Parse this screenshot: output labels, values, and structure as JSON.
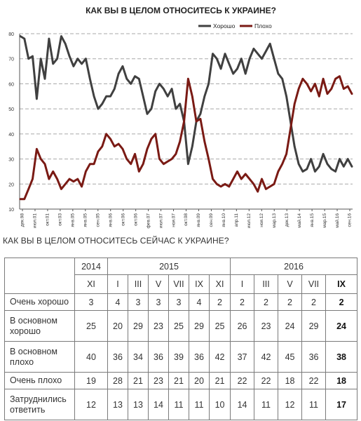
{
  "chart_data": {
    "type": "line",
    "title": "КАК ВЫ В ЦЕЛОМ ОТНОСИТЕСЬ К УКРАИНЕ?",
    "ylim": [
      10,
      80
    ],
    "yticks": [
      "10",
      "20",
      "30",
      "40",
      "50",
      "60",
      "70",
      "80"
    ],
    "grid": true,
    "legend_position": "top-right",
    "colors": {
      "good": "#404040",
      "bad": "#7a1a14",
      "grid": "#a8a8a8"
    },
    "x_tick_labels": [
      "дек.98",
      "июл.01",
      "окт.01",
      "окт.03",
      "янв.05",
      "янв.05",
      "сен.05",
      "янв.06",
      "окт.06",
      "окт.06",
      "фев.07",
      "июл.07",
      "ноя.07",
      "окт.08",
      "янв.09",
      "сен.09",
      "янв.10",
      "апр.11",
      "июл.12",
      "ноя.12",
      "мар.13",
      "дек.13",
      "май.14",
      "янв.15",
      "мар.15",
      "май.16",
      "сен.16"
    ],
    "series": [
      {
        "name": "Хорошо",
        "color": "#404040",
        "values": [
          79,
          78,
          70,
          71,
          54,
          70,
          62,
          78,
          68,
          70,
          79,
          76,
          71,
          67,
          70,
          68,
          70,
          62,
          55,
          50,
          52,
          55,
          55,
          58,
          64,
          67,
          62,
          60,
          63,
          62,
          55,
          48,
          50,
          57,
          60,
          58,
          55,
          58,
          50,
          52,
          45,
          28,
          35,
          45,
          48,
          55,
          60,
          72,
          70,
          66,
          72,
          68,
          64,
          66,
          70,
          64,
          70,
          74,
          72,
          70,
          73,
          76,
          70,
          64,
          62,
          55,
          45,
          35,
          28,
          25,
          26,
          30,
          25,
          27,
          32,
          28,
          26,
          25,
          30,
          27,
          30,
          27
        ]
      },
      {
        "name": "Плохо",
        "color": "#7a1a14",
        "values": [
          14,
          14,
          18,
          22,
          34,
          30,
          28,
          22,
          25,
          22,
          18,
          20,
          22,
          21,
          22,
          19,
          25,
          28,
          28,
          33,
          35,
          40,
          38,
          35,
          36,
          34,
          30,
          28,
          32,
          25,
          28,
          34,
          38,
          40,
          30,
          28,
          29,
          30,
          32,
          37,
          45,
          62,
          55,
          45,
          46,
          37,
          30,
          22,
          20,
          19,
          20,
          19,
          22,
          25,
          22,
          24,
          22,
          20,
          17,
          22,
          18,
          19,
          20,
          25,
          28,
          32,
          42,
          52,
          58,
          62,
          60,
          57,
          60,
          55,
          62,
          56,
          58,
          62,
          63,
          58,
          59,
          56
        ]
      }
    ]
  },
  "table_title": "КАК ВЫ В ЦЕЛОМ ОТНОСИТЕСЬ СЕЙЧАС К УКРАИНЕ?",
  "table": {
    "years": [
      "2014",
      "2015",
      "2016"
    ],
    "months": [
      "XI",
      "I",
      "III",
      "V",
      "VII",
      "IX",
      "XI",
      "I",
      "III",
      "V",
      "VII",
      "IX"
    ],
    "rows": [
      {
        "label": "Очень хорошо",
        "values": [
          "3",
          "4",
          "3",
          "3",
          "3",
          "4",
          "2",
          "2",
          "2",
          "2",
          "2",
          "2"
        ]
      },
      {
        "label": "В основном хорошо",
        "values": [
          "25",
          "20",
          "29",
          "23",
          "25",
          "29",
          "25",
          "26",
          "23",
          "24",
          "29",
          "24"
        ]
      },
      {
        "label": "В основном плохо",
        "values": [
          "40",
          "36",
          "34",
          "36",
          "39",
          "36",
          "42",
          "37",
          "42",
          "45",
          "36",
          "38"
        ]
      },
      {
        "label": "Очень плохо",
        "values": [
          "19",
          "28",
          "21",
          "23",
          "21",
          "20",
          "21",
          "22",
          "22",
          "18",
          "22",
          "18"
        ]
      },
      {
        "label": "Затруднились ответить",
        "values": [
          "12",
          "13",
          "13",
          "14",
          "11",
          "11",
          "10",
          "14",
          "11",
          "12",
          "11",
          "17"
        ]
      }
    ]
  }
}
